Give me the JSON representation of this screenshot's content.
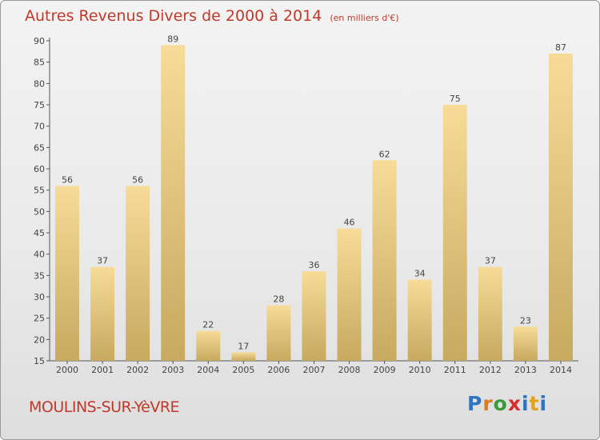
{
  "chart_data": {
    "type": "bar",
    "title": "Autres Revenus Divers de 2000 à 2014",
    "subtitle": "(en milliers d'€)",
    "categories": [
      "2000",
      "2001",
      "2002",
      "2003",
      "2004",
      "2005",
      "2006",
      "2007",
      "2008",
      "2009",
      "2010",
      "2011",
      "2012",
      "2013",
      "2014"
    ],
    "values": [
      56,
      37,
      56,
      89,
      22,
      17,
      28,
      36,
      46,
      62,
      34,
      75,
      37,
      23,
      87
    ],
    "ylim": [
      15,
      90
    ],
    "yticks": [
      15,
      20,
      25,
      30,
      35,
      40,
      45,
      50,
      55,
      60,
      65,
      70,
      75,
      80,
      85,
      90
    ],
    "grid": false,
    "data_labels": true,
    "colors": {
      "bar_top": "#f6dc98",
      "bar_bottom": "#c7a95f",
      "axis": "#555555",
      "label": "#444444"
    }
  },
  "footer": {
    "city": "MOULINS-SUR-YèVRE"
  },
  "logo": {
    "text": "Proxiti"
  }
}
